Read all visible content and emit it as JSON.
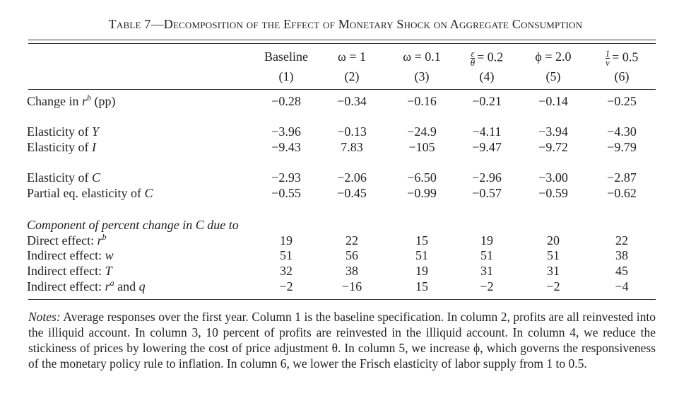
{
  "title": "Table 7—Decomposition of the Effect of Monetary Shock on Aggregate Consumption",
  "columns": [
    {
      "label": "Baseline",
      "number": "(1)"
    },
    {
      "label": "ω = 1",
      "number": "(2)"
    },
    {
      "label": "ω = 0.1",
      "number": "(3)"
    },
    {
      "num": "ε",
      "den": "θ",
      "label": "= 0.2",
      "number": "(4)"
    },
    {
      "label": "ϕ = 2.0",
      "number": "(5)"
    },
    {
      "num": "1",
      "den": "ν",
      "label": "= 0.5",
      "number": "(6)"
    }
  ],
  "rows": [
    {
      "label": {
        "text": "Change in ",
        "variable": "r",
        "superscript": "b",
        "after": " (pp)"
      },
      "cells": [
        "−0.28",
        "−0.34",
        "−0.16",
        "−0.21",
        "−0.14",
        "−0.25"
      ]
    },
    {
      "label": {
        "text": "Elasticity of ",
        "variable": "Y"
      },
      "cells": [
        "−3.96",
        "−0.13",
        "−24.9",
        "−4.11",
        "−3.94",
        "−4.30"
      ]
    },
    {
      "label": {
        "text": "Elasticity of ",
        "variable": "I"
      },
      "cells": [
        "−9.43",
        "7.83",
        "−105",
        "−9.47",
        "−9.72",
        "−9.79"
      ]
    },
    {
      "label": {
        "text": "Elasticity of ",
        "variable": "C"
      },
      "cells": [
        "−2.93",
        "−2.06",
        "−6.50",
        "−2.96",
        "−3.00",
        "−2.87"
      ]
    },
    {
      "label": {
        "text": "Partial eq. elasticity of ",
        "variable": "C"
      },
      "cells": [
        "−0.55",
        "−0.45",
        "−0.99",
        "−0.57",
        "−0.59",
        "−0.62"
      ]
    },
    {
      "section_heading": "Component of percent change in C due to"
    },
    {
      "label": {
        "text": "Direct effect: ",
        "variable": "r",
        "superscript": "b"
      },
      "cells": [
        "19",
        "22",
        "15",
        "19",
        "20",
        "22"
      ]
    },
    {
      "label": {
        "text": "Indirect effect: ",
        "variable": "w"
      },
      "cells": [
        "51",
        "56",
        "51",
        "51",
        "51",
        "38"
      ]
    },
    {
      "label": {
        "text": "Indirect effect: ",
        "variable": "T"
      },
      "cells": [
        "32",
        "38",
        "19",
        "31",
        "31",
        "45"
      ]
    },
    {
      "label": {
        "text": "Indirect effect: ",
        "variable": "r",
        "superscript": "a",
        "after": " and ",
        "after_variable": "q"
      },
      "cells": [
        "−2",
        "−16",
        "15",
        "−2",
        "−2",
        "−4"
      ]
    }
  ],
  "notes": {
    "label": "Notes:",
    "text": "Average responses over the first year. Column 1 is the baseline specification. In column 2, profits are all reinvested into the illiquid account. In column 3, 10 percent of profits are reinvested in the illiquid account. In column 4, we reduce the stickiness of prices by lowering the cost of price adjustment θ. In column 5, we increase ϕ, which governs the responsiveness of the monetary policy rule to inflation. In column 6, we lower the Frisch elasticity of labor supply from 1 to 0.5."
  }
}
